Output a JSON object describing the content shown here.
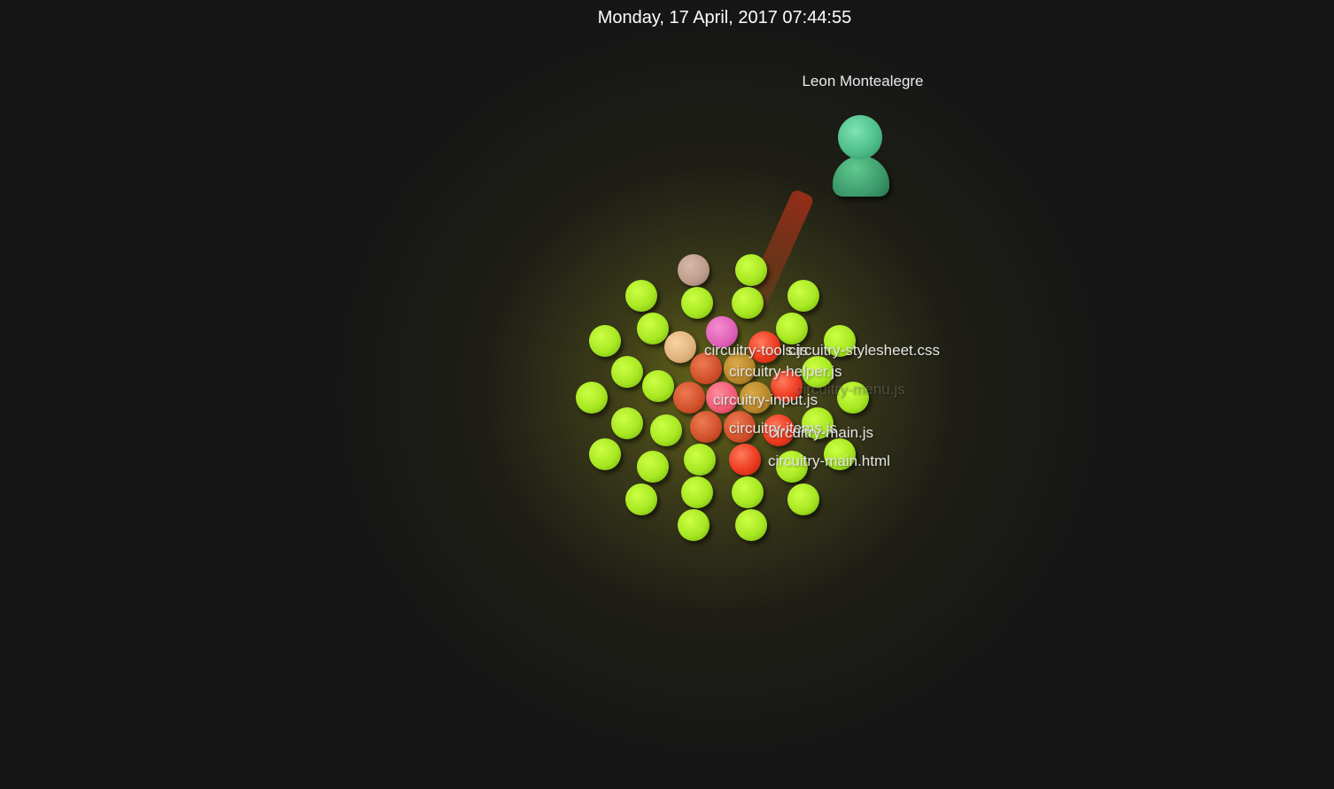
{
  "datetime": "Monday, 17 April, 2017 07:44:55",
  "user": {
    "name": "Leon Montealegre",
    "color": "#4fbf8a"
  },
  "files": [
    "circuitry-tools.js",
    "circuitry-stylesheet.css",
    "circuitry-helper.js",
    "circuitry-menu.js",
    "circuitry-input.js",
    "circuitry-items.js",
    "circuitry-main.js",
    "circuitry-main.html"
  ],
  "colors": {
    "background": "#161616",
    "glow": "#80801a",
    "file_node": "#a8e822",
    "active_file": "#ee3b20"
  }
}
